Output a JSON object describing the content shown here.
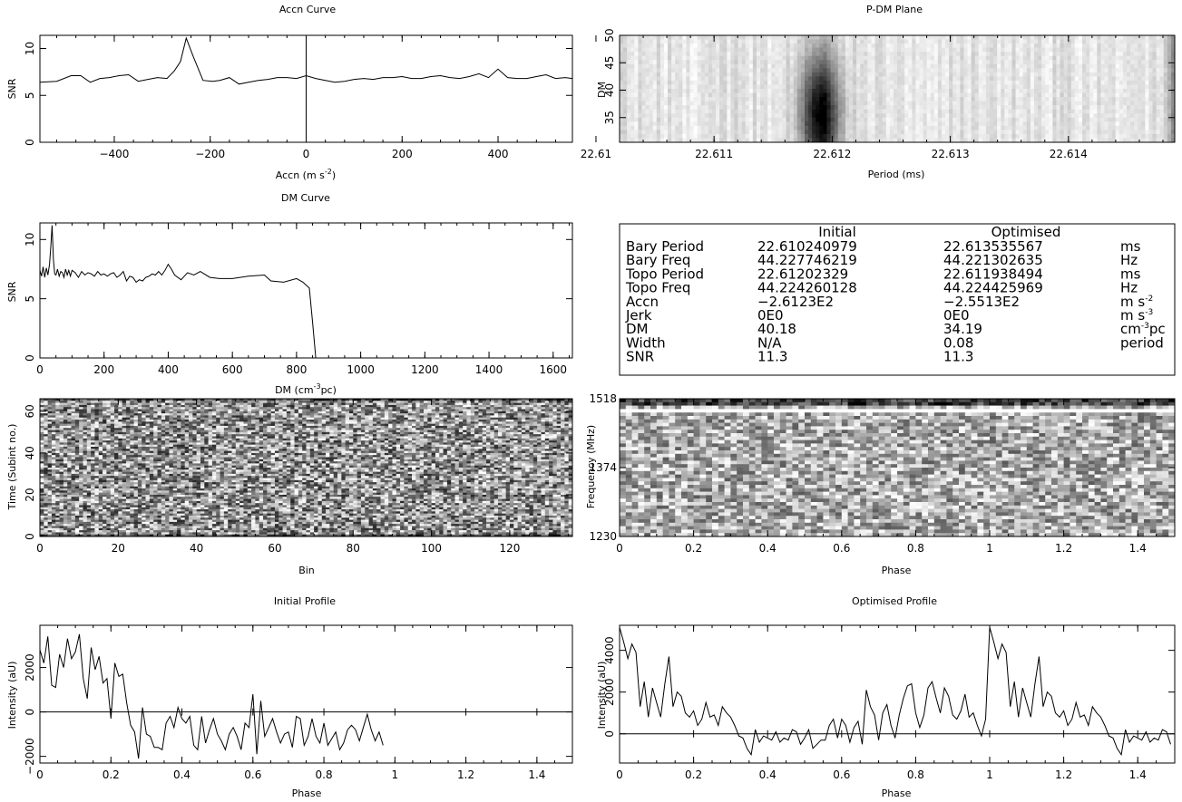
{
  "colors": {
    "ink": "#000000",
    "paper": "#ffffff"
  },
  "chart_data": [
    {
      "id": "accn",
      "type": "line",
      "title": "Accn Curve",
      "xlabel": "Accn (m s-2)",
      "xlabel_parts": [
        "Accn (m s",
        "-2",
        ")"
      ],
      "ylabel": "SNR",
      "xlim": [
        -555,
        555
      ],
      "ylim": [
        0,
        11.4
      ],
      "xticks": [
        -400,
        -200,
        0,
        200,
        400
      ],
      "xtick_labels": [
        "−400",
        "−200",
        "0",
        "200",
        "400"
      ],
      "yticks": [
        0,
        5,
        10
      ],
      "ytick_labels": [
        "0",
        "5",
        "10"
      ],
      "vline_x": 0,
      "x": [
        -555,
        -520,
        -490,
        -470,
        -450,
        -430,
        -410,
        -390,
        -370,
        -350,
        -330,
        -310,
        -290,
        -275,
        -262,
        -250,
        -235,
        -215,
        -195,
        -180,
        -160,
        -140,
        -120,
        -100,
        -80,
        -60,
        -40,
        -20,
        0,
        20,
        40,
        60,
        80,
        100,
        120,
        140,
        160,
        180,
        200,
        220,
        240,
        260,
        280,
        300,
        320,
        340,
        360,
        380,
        400,
        420,
        440,
        460,
        480,
        500,
        520,
        540,
        555
      ],
      "y": [
        6.4,
        6.5,
        7.1,
        7.1,
        6.4,
        6.8,
        6.9,
        7.1,
        7.2,
        6.5,
        6.7,
        6.9,
        6.8,
        7.6,
        8.6,
        11.1,
        9.1,
        6.6,
        6.5,
        6.6,
        6.9,
        6.2,
        6.4,
        6.6,
        6.7,
        6.9,
        6.9,
        6.8,
        7.1,
        6.8,
        6.6,
        6.4,
        6.5,
        6.7,
        6.8,
        6.7,
        6.9,
        6.9,
        7.0,
        6.8,
        6.8,
        7.0,
        7.1,
        6.9,
        6.8,
        7.0,
        7.3,
        6.9,
        7.8,
        6.9,
        6.8,
        6.8,
        7.0,
        7.2,
        6.8,
        6.9,
        6.8
      ]
    },
    {
      "id": "pdm",
      "type": "heatmap",
      "title": "P-DM Plane",
      "xlabel": "Period (ms)",
      "ylabel": "DM",
      "xlim": [
        22.6102,
        22.6149
      ],
      "ylim": [
        30.5,
        50
      ],
      "xticks": [
        22.61,
        22.611,
        22.612,
        22.613,
        22.614
      ],
      "xtick_labels": [
        "22.61",
        "22.611",
        "22.612",
        "22.613",
        "22.614"
      ],
      "yticks": [
        35,
        40,
        45,
        50
      ],
      "ytick_labels": [
        "35",
        "40",
        "45",
        "50"
      ],
      "peak_period": 22.6119,
      "peak_dm": 35.5
    },
    {
      "id": "dm",
      "type": "line",
      "title": "DM Curve",
      "xlabel": "DM (cm-3pc)",
      "xlabel_parts": [
        "DM  (cm",
        "-3",
        "pc)"
      ],
      "ylabel": "SNR",
      "xlim": [
        0,
        1660
      ],
      "ylim": [
        0,
        11.4
      ],
      "xticks": [
        0,
        200,
        400,
        600,
        800,
        1000,
        1200,
        1400,
        1600
      ],
      "xtick_labels": [
        "0",
        "200",
        "400",
        "600",
        "800",
        "1000",
        "1200",
        "1400",
        "1600"
      ],
      "yticks": [
        0,
        5,
        10
      ],
      "ytick_labels": [
        "0",
        "5",
        "10"
      ],
      "x": [
        0,
        5,
        10,
        15,
        20,
        25,
        30,
        34,
        38,
        42,
        46,
        50,
        55,
        60,
        65,
        70,
        75,
        80,
        85,
        90,
        95,
        100,
        110,
        120,
        130,
        140,
        150,
        160,
        170,
        180,
        190,
        200,
        210,
        220,
        230,
        240,
        250,
        260,
        270,
        280,
        290,
        300,
        310,
        320,
        330,
        340,
        350,
        360,
        370,
        380,
        390,
        400,
        410,
        420,
        440,
        460,
        480,
        500,
        530,
        560,
        600,
        650,
        700,
        720,
        760,
        800,
        820,
        840,
        850,
        860,
        1660
      ],
      "y": [
        7.4,
        6.9,
        7.7,
        6.8,
        7.6,
        7.0,
        7.9,
        9.4,
        11.2,
        8.3,
        7.1,
        7.0,
        7.5,
        6.9,
        7.3,
        7.2,
        6.8,
        7.5,
        7.0,
        7.4,
        6.9,
        7.4,
        7.2,
        6.8,
        7.3,
        7.0,
        7.2,
        7.1,
        6.9,
        7.3,
        7.0,
        7.1,
        6.9,
        7.1,
        7.2,
        6.8,
        7.0,
        7.3,
        6.5,
        6.9,
        6.8,
        6.4,
        6.6,
        6.5,
        6.8,
        6.9,
        7.1,
        7.0,
        7.3,
        7.0,
        7.4,
        7.9,
        7.5,
        7.0,
        6.6,
        7.2,
        7.0,
        7.3,
        6.8,
        6.7,
        6.7,
        6.9,
        7.0,
        6.5,
        6.4,
        6.7,
        6.4,
        5.9,
        3.0,
        0.0,
        0.0
      ]
    },
    {
      "id": "waterfall",
      "type": "heatmap",
      "title": "",
      "xlabel": "Bin",
      "ylabel": "Time (Subint no.)",
      "xlim": [
        0,
        136
      ],
      "ylim": [
        0,
        66
      ],
      "xticks": [
        0,
        20,
        40,
        60,
        80,
        100,
        120
      ],
      "xtick_labels": [
        "0",
        "20",
        "40",
        "60",
        "80",
        "100",
        "120"
      ],
      "yticks": [
        0,
        20,
        40,
        60
      ],
      "ytick_labels": [
        "0",
        "20",
        "40",
        "60"
      ],
      "nx": 136,
      "ny": 66
    },
    {
      "id": "freq",
      "type": "heatmap",
      "title": "",
      "xlabel": "Phase",
      "ylabel": "Frequency (MHz)",
      "xlim": [
        0,
        1.5
      ],
      "ylim": [
        1230,
        1518
      ],
      "xticks": [
        0,
        0.2,
        0.4,
        0.6,
        0.8,
        1,
        1.2,
        1.4
      ],
      "xtick_labels": [
        "0",
        "0.2",
        "0.4",
        "0.6",
        "0.8",
        "1",
        "1.2",
        "1.4"
      ],
      "yticks": [
        1230,
        1374,
        1518
      ],
      "ytick_labels": [
        "1230",
        "1374",
        "1518"
      ],
      "nx": 90,
      "ny": 40
    },
    {
      "id": "init",
      "type": "line",
      "title": "Initial Profile",
      "xlabel": "Phase",
      "ylabel": "Intensity (aU)",
      "xlim": [
        0,
        1.5
      ],
      "ylim": [
        -2300,
        3900
      ],
      "xticks": [
        0,
        0.2,
        0.4,
        0.6,
        0.8,
        1,
        1.2,
        1.4
      ],
      "xtick_labels": [
        "0",
        "0.2",
        "0.4",
        "0.6",
        "0.8",
        "1",
        "1.2",
        "1.4"
      ],
      "yticks": [
        -2000,
        0,
        2000
      ],
      "ytick_labels": [
        "−2000",
        "0",
        "2000"
      ],
      "zero_line": true,
      "base": [
        2800,
        2200,
        3400,
        1200,
        1100,
        2600,
        2000,
        3300,
        2400,
        2700,
        3500,
        1500,
        600,
        2900,
        1900,
        2500,
        1300,
        1500,
        -300,
        2200,
        1600,
        1700,
        400,
        -600,
        -900,
        -2100,
        200,
        -1000,
        -1100,
        -1600,
        -1600,
        -1700,
        -500,
        -200,
        -700,
        200,
        -300,
        -500,
        -200,
        -1500,
        -1700,
        -200,
        -1400,
        -800,
        -300,
        -1000,
        -1300,
        -1700,
        -1000,
        -700,
        -1100,
        -1700,
        -500,
        -700,
        800,
        -1900,
        500,
        -1100,
        -700,
        -300,
        -900,
        -1400,
        -1000,
        -900,
        -1600,
        -200,
        -300,
        -1500,
        -1100,
        -300,
        -1100,
        -1400,
        -500,
        -1500,
        -1200,
        -900,
        -1700,
        -1400,
        -800,
        -600,
        -800,
        -1300,
        -700,
        -100,
        -800,
        -1300,
        -900,
        -1500
      ],
      "repeat_period": 90
    },
    {
      "id": "opt",
      "type": "line",
      "title": "Optimised Profile",
      "xlabel": "Phase",
      "ylabel": "Intensity (aU)",
      "xlim": [
        0,
        1.5
      ],
      "ylim": [
        -1400,
        5200
      ],
      "xticks": [
        0,
        0.2,
        0.4,
        0.6,
        0.8,
        1,
        1.2,
        1.4
      ],
      "xtick_labels": [
        "0",
        "0.2",
        "0.4",
        "0.6",
        "0.8",
        "1",
        "1.2",
        "1.4"
      ],
      "yticks": [
        0,
        2000,
        4000
      ],
      "ytick_labels": [
        "0",
        "2000",
        "4000"
      ],
      "zero_line": true,
      "base": [
        5100,
        4400,
        3600,
        4300,
        3900,
        1300,
        2500,
        800,
        2200,
        1500,
        800,
        2400,
        3700,
        1300,
        2000,
        1800,
        1000,
        800,
        1100,
        400,
        700,
        1500,
        800,
        900,
        400,
        1300,
        1000,
        800,
        400,
        -100,
        -200,
        -700,
        -1000,
        200,
        -400,
        -100,
        -200,
        -300,
        100,
        -400,
        -200,
        -300,
        200,
        100,
        -500,
        -200,
        200,
        -700,
        -500,
        -300,
        -300,
        400,
        700,
        -200,
        700,
        400,
        -400,
        300,
        600,
        -500,
        2100,
        1300,
        900,
        -300,
        1000,
        1400,
        400,
        -200,
        900,
        1700,
        2300,
        2400,
        1000,
        300,
        900,
        2200,
        2500,
        1700,
        1000,
        2200,
        1800,
        900,
        700,
        1100,
        1900,
        800,
        1000,
        400,
        -100,
        700
      ],
      "repeat_period": 90
    }
  ],
  "table": {
    "headers": {
      "initial": "Initial",
      "optimised": "Optimised"
    },
    "rows": [
      {
        "label": "Bary Period",
        "initial": "22.610240979",
        "optimised": "22.613535567",
        "unit": "ms",
        "unit_sup": "",
        "unit_tail": ""
      },
      {
        "label": "Bary Freq",
        "initial": "44.227746219",
        "optimised": "44.221302635",
        "unit": "Hz",
        "unit_sup": "",
        "unit_tail": ""
      },
      {
        "label": "Topo Period",
        "initial": "22.61202329",
        "optimised": "22.611938494",
        "unit": "ms",
        "unit_sup": "",
        "unit_tail": ""
      },
      {
        "label": "Topo Freq",
        "initial": "44.224260128",
        "optimised": "44.224425969",
        "unit": "Hz",
        "unit_sup": "",
        "unit_tail": ""
      },
      {
        "label": "Accn",
        "initial": "−2.6123E2",
        "optimised": "−2.5513E2",
        "unit": "m  s",
        "unit_sup": "-2",
        "unit_tail": ""
      },
      {
        "label": "Jerk",
        "initial": "0E0",
        "optimised": "0E0",
        "unit": "m  s",
        "unit_sup": "-3",
        "unit_tail": ""
      },
      {
        "label": "DM",
        "initial": "40.18",
        "optimised": "34.19",
        "unit": "cm",
        "unit_sup": "-3",
        "unit_tail": "pc"
      },
      {
        "label": "Width",
        "initial": "N/A",
        "optimised": "0.08",
        "unit": "period",
        "unit_sup": "",
        "unit_tail": ""
      },
      {
        "label": "SNR",
        "initial": "11.3",
        "optimised": "11.3",
        "unit": "",
        "unit_sup": "",
        "unit_tail": ""
      }
    ]
  }
}
